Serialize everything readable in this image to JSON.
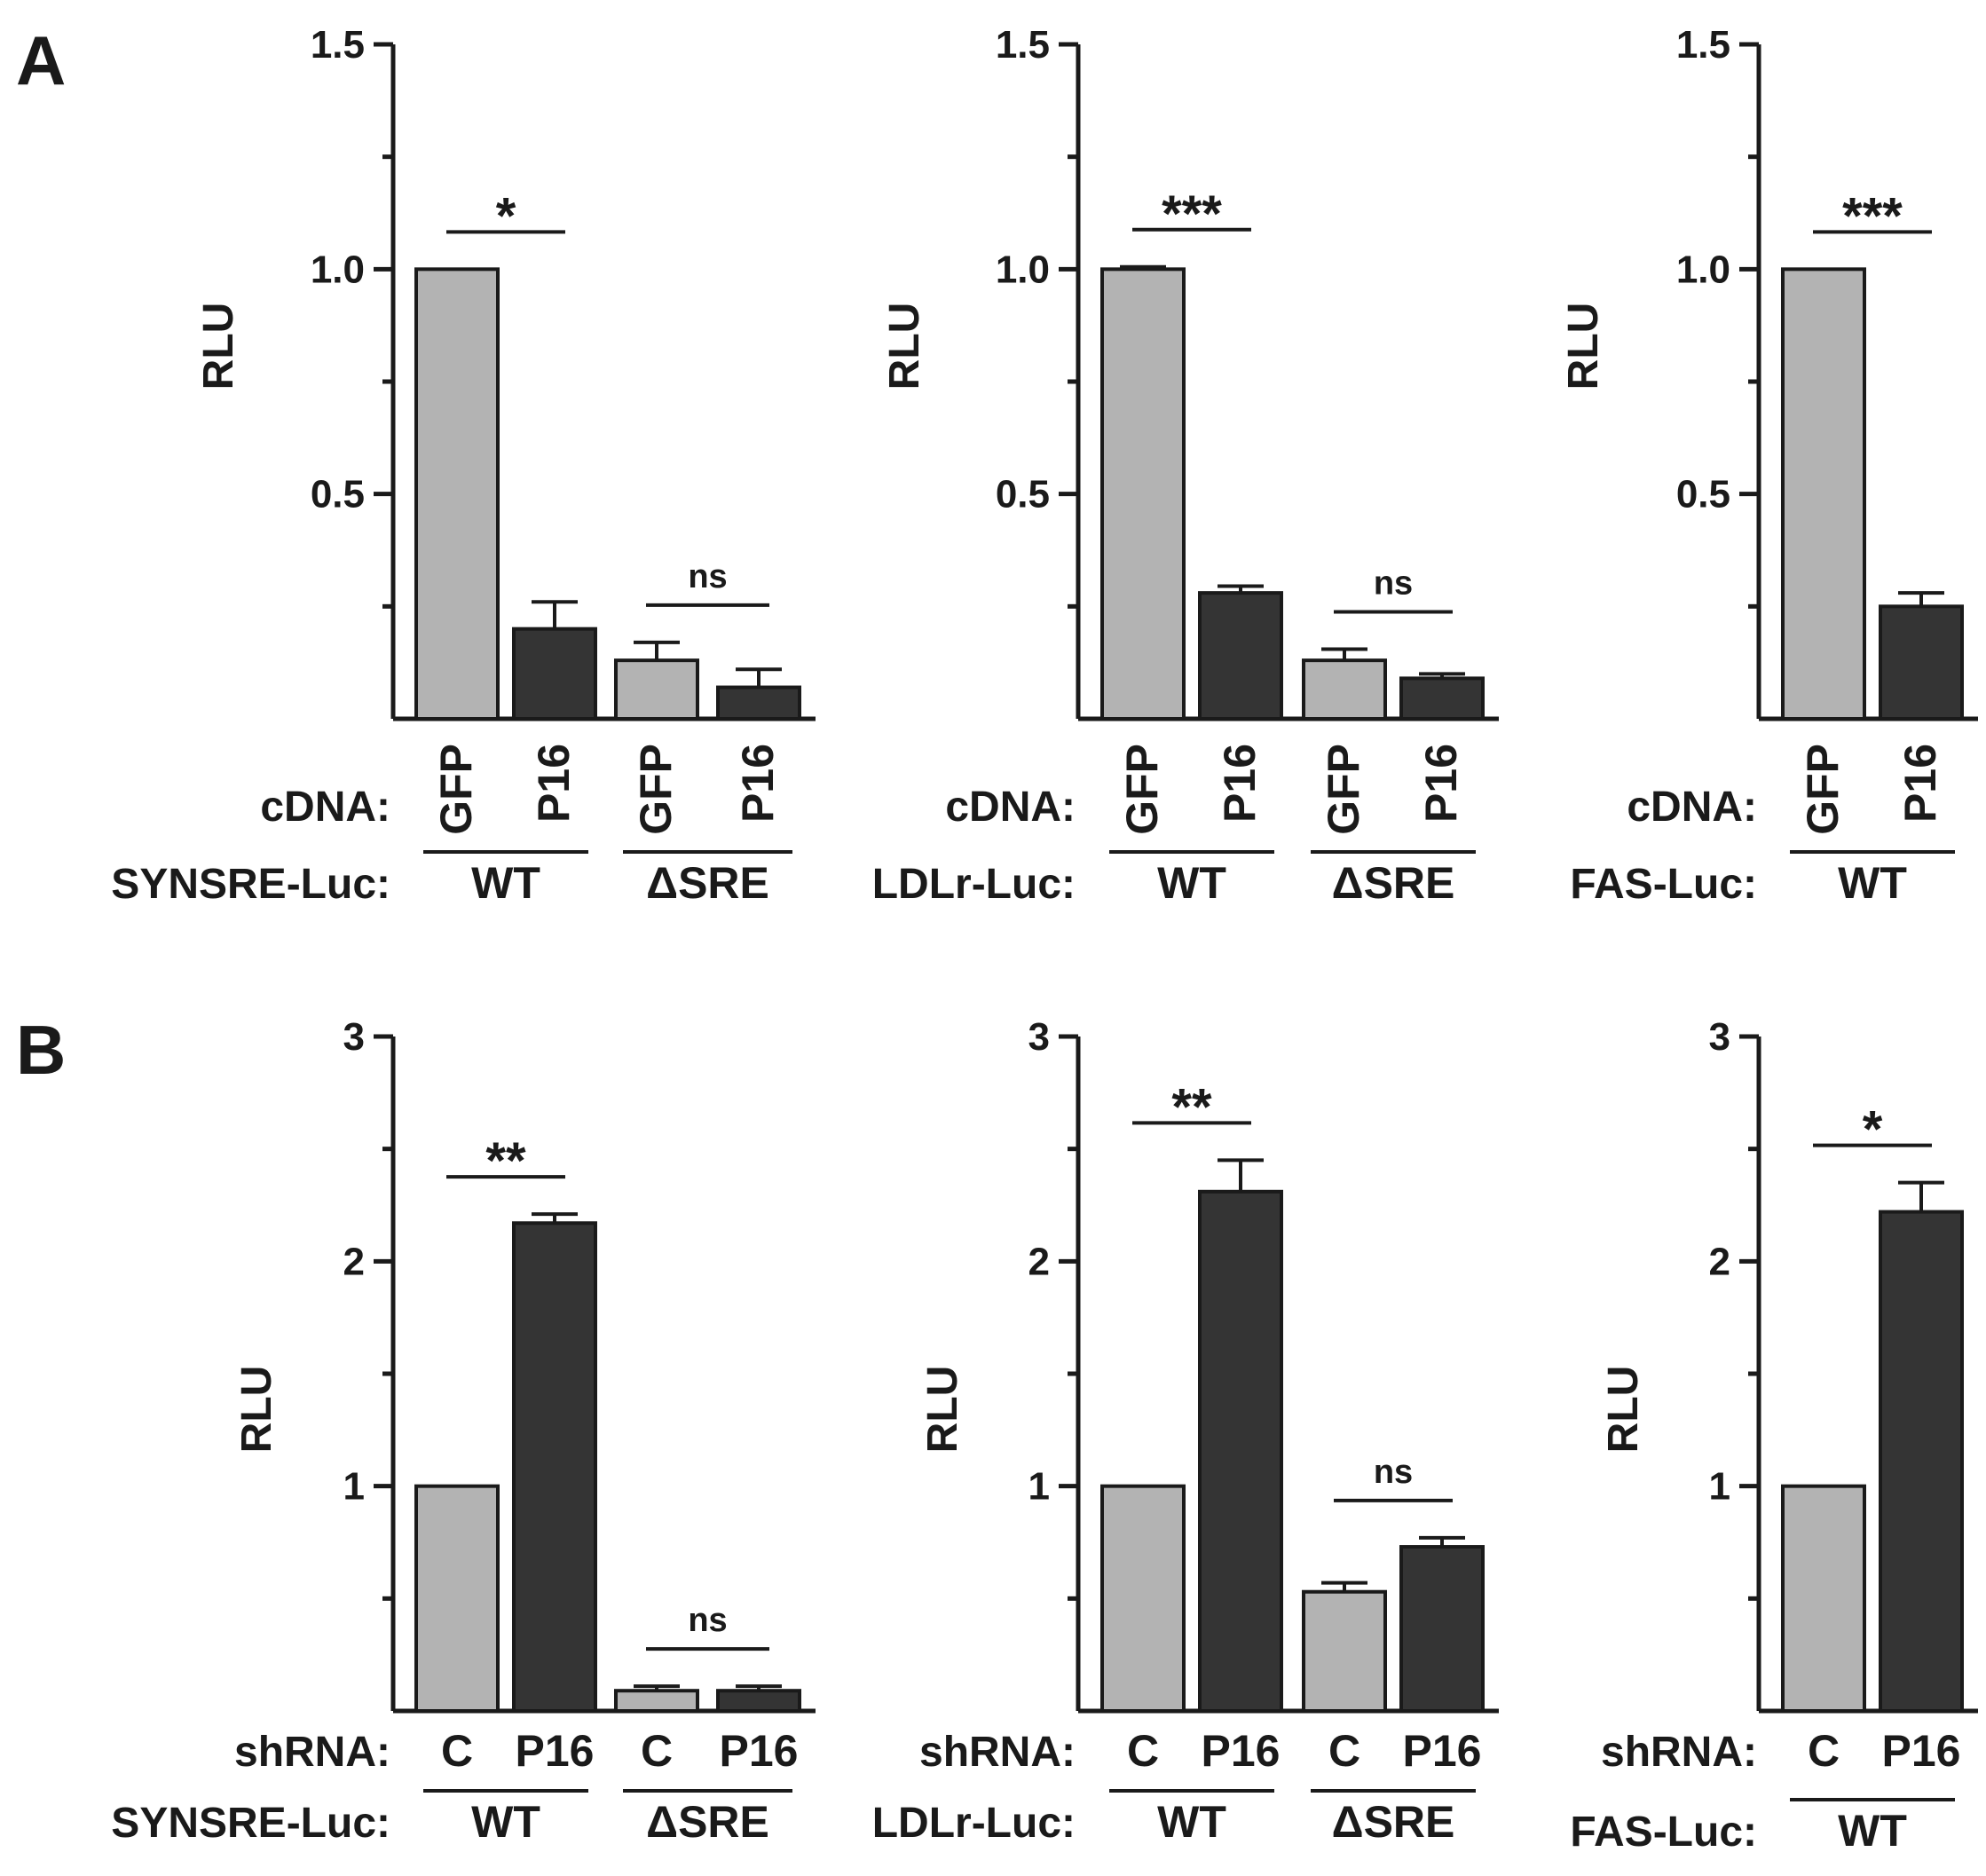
{
  "panel_labels": [
    "A",
    "B"
  ],
  "colors": {
    "light_bar": "#b3b3b3",
    "dark_bar": "#343434",
    "ink": "#1a1a1a"
  },
  "chart_data": [
    {
      "id": "A1",
      "panel": "A",
      "type": "bar",
      "ylabel": "RLU",
      "ylim": [
        0,
        1.5
      ],
      "yticks": [
        0.5,
        1.0,
        1.5
      ],
      "ytick_labels": [
        "0.5",
        "1.0",
        "1.5"
      ],
      "category_title": "cDNA:",
      "reporter_title": "SYNSRE-Luc:",
      "categories": [
        "GFP",
        "P16",
        "GFP",
        "P16"
      ],
      "category_orientation": "vertical",
      "groups": [
        "WT",
        "ΔSRE"
      ],
      "values": [
        1.0,
        0.2,
        0.13,
        0.07
      ],
      "errors": [
        0,
        0.06,
        0.04,
        0.04
      ],
      "bar_colors": [
        "light",
        "dark",
        "light",
        "dark"
      ],
      "significance": [
        {
          "bars": [
            0,
            1
          ],
          "label": "*"
        },
        {
          "bars": [
            2,
            3
          ],
          "label": "ns"
        }
      ]
    },
    {
      "id": "A2",
      "panel": "A",
      "type": "bar",
      "ylabel": "RLU",
      "ylim": [
        0,
        1.5
      ],
      "yticks": [
        0.5,
        1.0,
        1.5
      ],
      "ytick_labels": [
        "0.5",
        "1.0",
        "1.5"
      ],
      "category_title": "cDNA:",
      "reporter_title": "LDLr-Luc:",
      "categories": [
        "GFP",
        "P16",
        "GFP",
        "P16"
      ],
      "category_orientation": "vertical",
      "groups": [
        "WT",
        "ΔSRE"
      ],
      "values": [
        1.0,
        0.28,
        0.13,
        0.09
      ],
      "errors": [
        0.005,
        0.015,
        0.025,
        0.01
      ],
      "bar_colors": [
        "light",
        "dark",
        "light",
        "dark"
      ],
      "significance": [
        {
          "bars": [
            0,
            1
          ],
          "label": "***"
        },
        {
          "bars": [
            2,
            3
          ],
          "label": "ns"
        }
      ]
    },
    {
      "id": "A3",
      "panel": "A",
      "type": "bar",
      "ylabel": "RLU",
      "ylim": [
        0,
        1.5
      ],
      "yticks": [
        0.5,
        1.0,
        1.5
      ],
      "ytick_labels": [
        "0.5",
        "1.0",
        "1.5"
      ],
      "category_title": "cDNA:",
      "reporter_title": "FAS-Luc:",
      "categories": [
        "GFP",
        "P16"
      ],
      "category_orientation": "vertical",
      "groups": [
        "WT"
      ],
      "values": [
        1.0,
        0.25
      ],
      "errors": [
        0,
        0.03
      ],
      "bar_colors": [
        "light",
        "dark"
      ],
      "significance": [
        {
          "bars": [
            0,
            1
          ],
          "label": "***"
        }
      ]
    },
    {
      "id": "B1",
      "panel": "B",
      "type": "bar",
      "ylabel": "RLU",
      "ylim": [
        0,
        3
      ],
      "yticks": [
        1,
        2,
        3
      ],
      "ytick_labels": [
        "1",
        "2",
        "3"
      ],
      "category_title": "shRNA:",
      "reporter_title": "SYNSRE-Luc:",
      "categories": [
        "C",
        "P16",
        "C",
        "P16"
      ],
      "category_orientation": "horizontal",
      "groups": [
        "WT",
        "ΔSRE"
      ],
      "values": [
        1.0,
        2.17,
        0.09,
        0.09
      ],
      "errors": [
        0,
        0.04,
        0.02,
        0.02
      ],
      "bar_colors": [
        "light",
        "dark",
        "light",
        "dark"
      ],
      "significance": [
        {
          "bars": [
            0,
            1
          ],
          "label": "**"
        },
        {
          "bars": [
            2,
            3
          ],
          "label": "ns"
        }
      ]
    },
    {
      "id": "B2",
      "panel": "B",
      "type": "bar",
      "ylabel": "RLU",
      "ylim": [
        0,
        3
      ],
      "yticks": [
        1,
        2,
        3
      ],
      "ytick_labels": [
        "1",
        "2",
        "3"
      ],
      "category_title": "shRNA:",
      "reporter_title": "LDLr-Luc:",
      "categories": [
        "C",
        "P16",
        "C",
        "P16"
      ],
      "category_orientation": "horizontal",
      "groups": [
        "WT",
        "ΔSRE"
      ],
      "values": [
        1.0,
        2.31,
        0.53,
        0.73
      ],
      "errors": [
        0,
        0.14,
        0.04,
        0.04
      ],
      "bar_colors": [
        "light",
        "dark",
        "light",
        "dark"
      ],
      "significance": [
        {
          "bars": [
            0,
            1
          ],
          "label": "**"
        },
        {
          "bars": [
            2,
            3
          ],
          "label": "ns"
        }
      ]
    },
    {
      "id": "B3",
      "panel": "B",
      "type": "bar",
      "ylabel": "RLU",
      "ylim": [
        0,
        3
      ],
      "yticks": [
        1,
        2,
        3
      ],
      "ytick_labels": [
        "1",
        "2",
        "3"
      ],
      "category_title": "shRNA:",
      "reporter_title": "FAS-Luc:",
      "categories": [
        "C",
        "P16"
      ],
      "category_orientation": "horizontal",
      "groups": [
        "WT"
      ],
      "values": [
        1.0,
        2.22
      ],
      "errors": [
        0,
        0.13
      ],
      "bar_colors": [
        "light",
        "dark"
      ],
      "significance": [
        {
          "bars": [
            0,
            1
          ],
          "label": "*"
        }
      ]
    }
  ]
}
